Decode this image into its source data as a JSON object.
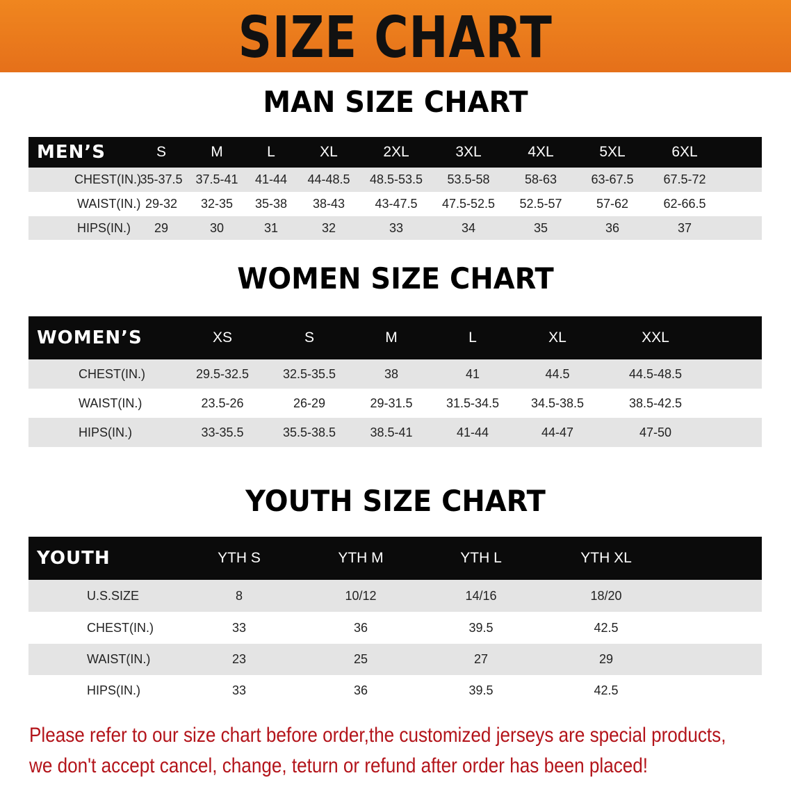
{
  "banner": {
    "title": "SIZE CHART",
    "color": "#ec7a1d"
  },
  "men": {
    "title": "MAN SIZE CHART",
    "header": [
      "MEN’S",
      "S",
      "M",
      "L",
      "XL",
      "2XL",
      "3XL",
      "4XL",
      "5XL",
      "6XL"
    ],
    "rows": [
      [
        "CHEST(IN.)",
        "35-37.5",
        "37.5-41",
        "41-44",
        "44-48.5",
        "48.5-53.5",
        "53.5-58",
        "58-63",
        "63-67.5",
        "67.5-72"
      ],
      [
        "WAIST(IN.)",
        "29-32",
        "32-35",
        "35-38",
        "38-43",
        "43-47.5",
        "47.5-52.5",
        "52.5-57",
        "57-62",
        "62-66.5"
      ],
      [
        "HIPS(IN.)",
        "29",
        "30",
        "31",
        "32",
        "33",
        "34",
        "35",
        "36",
        "37"
      ]
    ]
  },
  "women": {
    "title": "WOMEN SIZE CHART",
    "header": [
      "WOMEN’S",
      "XS",
      "S",
      "M",
      "L",
      "XL",
      "XXL"
    ],
    "rows": [
      [
        "CHEST(IN.)",
        "29.5-32.5",
        "32.5-35.5",
        "38",
        "41",
        "44.5",
        "44.5-48.5"
      ],
      [
        "WAIST(IN.)",
        "23.5-26",
        "26-29",
        "29-31.5",
        "31.5-34.5",
        "34.5-38.5",
        "38.5-42.5"
      ],
      [
        "HIPS(IN.)",
        "33-35.5",
        "35.5-38.5",
        "38.5-41",
        "41-44",
        "44-47",
        "47-50"
      ]
    ]
  },
  "youth": {
    "title": "YOUTH SIZE CHART",
    "header": [
      "YOUTH",
      "YTH S",
      "YTH M",
      "YTH L",
      "YTH XL"
    ],
    "rows": [
      [
        "U.S.SIZE",
        "8",
        "10/12",
        "14/16",
        "18/20"
      ],
      [
        "CHEST(IN.)",
        "33",
        "36",
        "39.5",
        "42.5"
      ],
      [
        "WAIST(IN.)",
        "23",
        "25",
        "27",
        "29"
      ],
      [
        "HIPS(IN.)",
        "33",
        "36",
        "39.5",
        "42.5"
      ]
    ]
  },
  "note": {
    "line1": "Please refer to our size chart before order,the customized jerseys are special products,",
    "line2": "we don't accept cancel, change, teturn or refund after order has been placed!",
    "color": "#b3141a"
  }
}
